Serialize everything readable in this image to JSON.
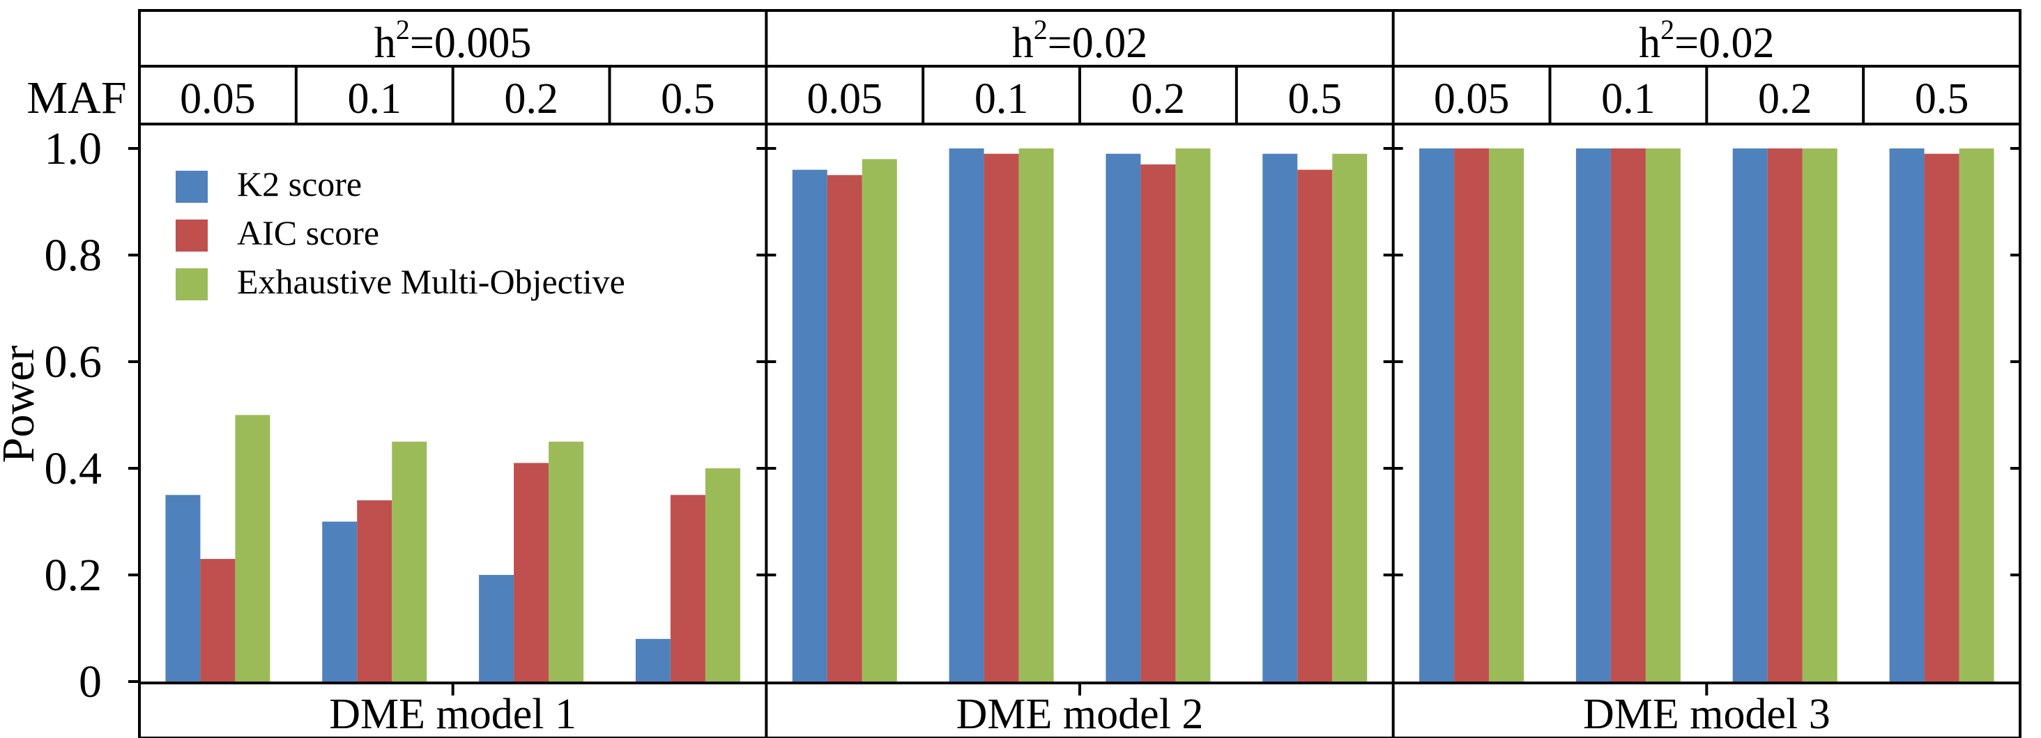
{
  "chart_data": {
    "type": "bar",
    "ylabel": "Power",
    "ylim": [
      0,
      1.0
    ],
    "yticks": [
      "0",
      "0.2",
      "0.4",
      "0.6",
      "0.8",
      "1.0"
    ],
    "maf_label": "MAF",
    "legend": {
      "placement": "top-left",
      "entries": [
        "K2 score",
        "AIC score",
        "Exhaustive Multi-Objective"
      ]
    },
    "colors": {
      "K2 score": "#4F81BD",
      "AIC score": "#C0504D",
      "Exhaustive Multi-Objective": "#9BBB59"
    },
    "panels": [
      {
        "heritability_base": "h",
        "heritability_exp": "2",
        "heritability_value": "=0.005",
        "model": "DME model 1",
        "categories": [
          "0.05",
          "0.1",
          "0.2",
          "0.5"
        ],
        "series": [
          {
            "name": "K2 score",
            "values": [
              0.35,
              0.3,
              0.2,
              0.08
            ]
          },
          {
            "name": "AIC score",
            "values": [
              0.23,
              0.34,
              0.41,
              0.35
            ]
          },
          {
            "name": "Exhaustive Multi-Objective",
            "values": [
              0.5,
              0.45,
              0.45,
              0.4
            ]
          }
        ]
      },
      {
        "heritability_base": "h",
        "heritability_exp": "2",
        "heritability_value": "=0.02",
        "model": "DME model 2",
        "categories": [
          "0.05",
          "0.1",
          "0.2",
          "0.5"
        ],
        "series": [
          {
            "name": "K2 score",
            "values": [
              0.96,
              1.0,
              0.99,
              0.99
            ]
          },
          {
            "name": "AIC score",
            "values": [
              0.95,
              0.99,
              0.97,
              0.96
            ]
          },
          {
            "name": "Exhaustive Multi-Objective",
            "values": [
              0.98,
              1.0,
              1.0,
              0.99
            ]
          }
        ]
      },
      {
        "heritability_base": "h",
        "heritability_exp": "2",
        "heritability_value": "=0.02",
        "model": "DME model 3",
        "categories": [
          "0.05",
          "0.1",
          "0.2",
          "0.5"
        ],
        "series": [
          {
            "name": "K2 score",
            "values": [
              1.0,
              1.0,
              1.0,
              1.0
            ]
          },
          {
            "name": "AIC score",
            "values": [
              1.0,
              1.0,
              1.0,
              0.99
            ]
          },
          {
            "name": "Exhaustive Multi-Objective",
            "values": [
              1.0,
              1.0,
              1.0,
              1.0
            ]
          }
        ]
      }
    ]
  }
}
